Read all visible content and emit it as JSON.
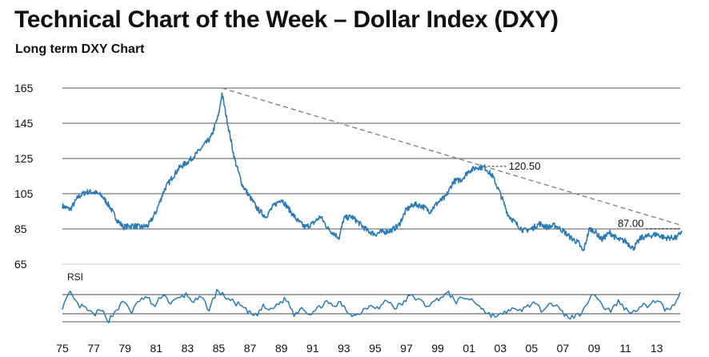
{
  "header": {
    "title": "Technical Chart of the Week – Dollar Index (DXY)",
    "subtitle": "Long term DXY Chart"
  },
  "colors": {
    "line": "#2a7ab8",
    "trendline": "#8a8a8a",
    "grid": "#555555"
  },
  "chart_data": {
    "type": "line",
    "title": "Technical Chart of the Week – Dollar Index (DXY)",
    "subtitle": "Long term DXY Chart",
    "x_tick_labels": [
      "75",
      "77",
      "79",
      "81",
      "83",
      "85",
      "87",
      "89",
      "91",
      "93",
      "95",
      "97",
      "99",
      "01",
      "03",
      "05",
      "07",
      "09",
      "11",
      "13"
    ],
    "x_range": [
      1975,
      2014.5
    ],
    "y_ticks": [
      65,
      85,
      105,
      125,
      145,
      165
    ],
    "ylim": [
      65,
      165
    ],
    "grid": true,
    "series": [
      {
        "x": [
          1975.0,
          1975.5,
          1976.0,
          1976.5,
          1977.0,
          1977.5,
          1978.0,
          1978.5,
          1978.9,
          1979.5,
          1980.0,
          1980.5,
          1981.0,
          1981.5,
          1982.0,
          1982.5,
          1983.0,
          1983.5,
          1984.0,
          1984.5,
          1985.0,
          1985.2,
          1985.5,
          1986.0,
          1986.5,
          1987.0,
          1987.5,
          1988.0,
          1988.5,
          1989.0,
          1989.5,
          1990.0,
          1990.5,
          1991.0,
          1991.5,
          1992.0,
          1992.7,
          1993.0,
          1993.5,
          1994.0,
          1994.5,
          1995.0,
          1995.3,
          1996.0,
          1996.5,
          1997.0,
          1997.5,
          1998.0,
          1998.5,
          1999.0,
          1999.5,
          2000.0,
          2000.5,
          2001.0,
          2001.5,
          2002.0,
          2002.5,
          2003.0,
          2003.5,
          2004.0,
          2004.5,
          2005.0,
          2005.5,
          2006.0,
          2006.5,
          2007.0,
          2007.5,
          2008.0,
          2008.3,
          2008.7,
          2009.0,
          2009.5,
          2010.0,
          2010.5,
          2011.0,
          2011.5,
          2012.0,
          2012.5,
          2013.0,
          2013.5,
          2014.0,
          2014.3,
          2014.6
        ],
        "y": [
          98,
          96,
          103,
          106,
          106,
          104,
          98,
          90,
          86,
          87,
          86,
          87,
          95,
          107,
          114,
          120,
          123,
          127,
          132,
          137,
          150,
          162,
          148,
          125,
          110,
          103,
          96,
          92,
          98,
          102,
          96,
          90,
          86,
          88,
          92,
          85,
          80,
          91,
          92,
          88,
          84,
          82,
          83,
          84,
          87,
          96,
          99,
          98,
          95,
          100,
          103,
          112,
          113,
          118,
          120,
          120,
          115,
          105,
          93,
          88,
          84,
          85,
          88,
          86,
          87,
          84,
          80,
          77,
          72,
          85,
          84,
          79,
          83,
          79,
          78,
          74,
          80,
          81,
          82,
          80,
          80,
          80,
          84
        ]
      }
    ],
    "trendline": {
      "from": [
        1985.2,
        165
      ],
      "to": [
        2014.6,
        87
      ]
    },
    "annotations": [
      {
        "label": "120.50",
        "x": 2002.0,
        "y": 120.5
      },
      {
        "label": "87.00",
        "x": 2014.6,
        "y": 87.0
      }
    ],
    "rsi": {
      "label": "RSI",
      "values": [
        45,
        70,
        48,
        42,
        30,
        38,
        20,
        40,
        55,
        35,
        58,
        62,
        45,
        70,
        52,
        60,
        68,
        55,
        62,
        40,
        75,
        65,
        55,
        48,
        35,
        28,
        45,
        38,
        52,
        60,
        30,
        45,
        32,
        40,
        55,
        45,
        52,
        35,
        28,
        40,
        50,
        42,
        58,
        44,
        50,
        66,
        60,
        48,
        52,
        64,
        70,
        55,
        62,
        58,
        48,
        32,
        28,
        30,
        42,
        35,
        45,
        52,
        38,
        55,
        45,
        30,
        25,
        32,
        55,
        70,
        45,
        38,
        55,
        40,
        35,
        50,
        45,
        60,
        40,
        45,
        72
      ]
    }
  }
}
